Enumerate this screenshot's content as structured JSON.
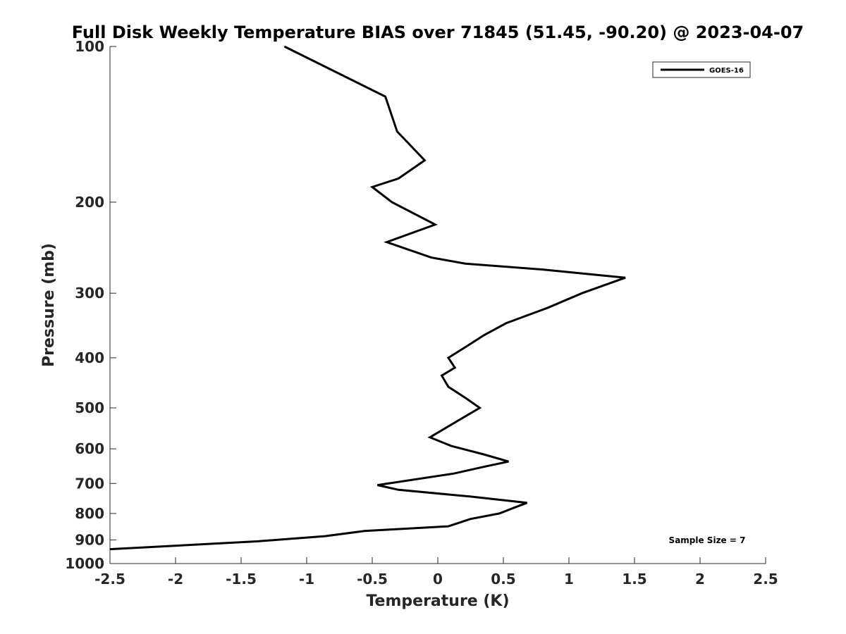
{
  "chart_data": {
    "type": "line",
    "title": "Full Disk Weekly Temperature BIAS over 71845 (51.45, -90.20) @ 2023-04-07",
    "xlabel": "Temperature (K)",
    "ylabel": "Pressure (mb)",
    "xlim": [
      -2.5,
      2.5
    ],
    "ylim": [
      1000,
      100
    ],
    "y_scale": "log",
    "x_ticks": [
      "-2.5",
      "-2",
      "-1.5",
      "-1",
      "-0.5",
      "0",
      "0.5",
      "1",
      "1.5",
      "2",
      "2.5"
    ],
    "y_ticks": [
      "100",
      "200",
      "300",
      "400",
      "500",
      "600",
      "700",
      "800",
      "900",
      "1000"
    ],
    "legend_position": "top-right",
    "grid": false,
    "series": [
      {
        "name": "GOES-16",
        "color": "#000000",
        "points": [
          [
            -1.17,
            100
          ],
          [
            -0.4,
            125
          ],
          [
            -0.31,
            146
          ],
          [
            -0.1,
            166
          ],
          [
            -0.3,
            180
          ],
          [
            -0.5,
            187
          ],
          [
            -0.35,
            200
          ],
          [
            -0.02,
            221
          ],
          [
            -0.39,
            239
          ],
          [
            -0.05,
            256
          ],
          [
            0.21,
            263
          ],
          [
            0.8,
            270
          ],
          [
            1.43,
            280
          ],
          [
            1.1,
            300
          ],
          [
            0.84,
            320
          ],
          [
            0.52,
            343
          ],
          [
            0.35,
            362
          ],
          [
            0.22,
            380
          ],
          [
            0.08,
            400
          ],
          [
            0.13,
            418
          ],
          [
            0.03,
            433
          ],
          [
            0.08,
            455
          ],
          [
            0.22,
            480
          ],
          [
            0.32,
            500
          ],
          [
            0.15,
            530
          ],
          [
            -0.06,
            570
          ],
          [
            0.1,
            592
          ],
          [
            0.35,
            615
          ],
          [
            0.54,
            635
          ],
          [
            0.35,
            650
          ],
          [
            0.12,
            670
          ],
          [
            -0.46,
            705
          ],
          [
            -0.3,
            720
          ],
          [
            0.25,
            742
          ],
          [
            0.68,
            763
          ],
          [
            0.58,
            780
          ],
          [
            0.47,
            800
          ],
          [
            0.25,
            820
          ],
          [
            0.08,
            847
          ],
          [
            -0.56,
            865
          ],
          [
            -0.86,
            885
          ],
          [
            -1.38,
            906
          ],
          [
            -2.5,
            938
          ]
        ]
      }
    ],
    "annotation": "Sample Size = 7"
  }
}
